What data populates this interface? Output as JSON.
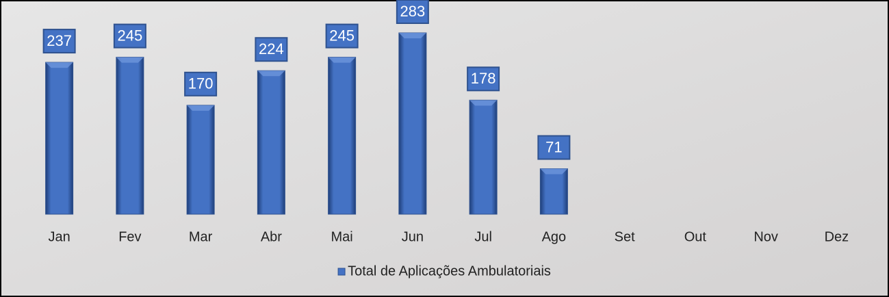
{
  "chart_data": {
    "type": "bar",
    "categories": [
      "Jan",
      "Fev",
      "Mar",
      "Abr",
      "Mai",
      "Jun",
      "Jul",
      "Ago",
      "Set",
      "Out",
      "Nov",
      "Dez"
    ],
    "series": [
      {
        "name": "Total de Aplicações Ambulatoriais",
        "color": "#4472c4",
        "values": [
          237,
          245,
          170,
          224,
          245,
          283,
          178,
          71,
          null,
          null,
          null,
          null
        ]
      }
    ],
    "legend": "bottom"
  }
}
